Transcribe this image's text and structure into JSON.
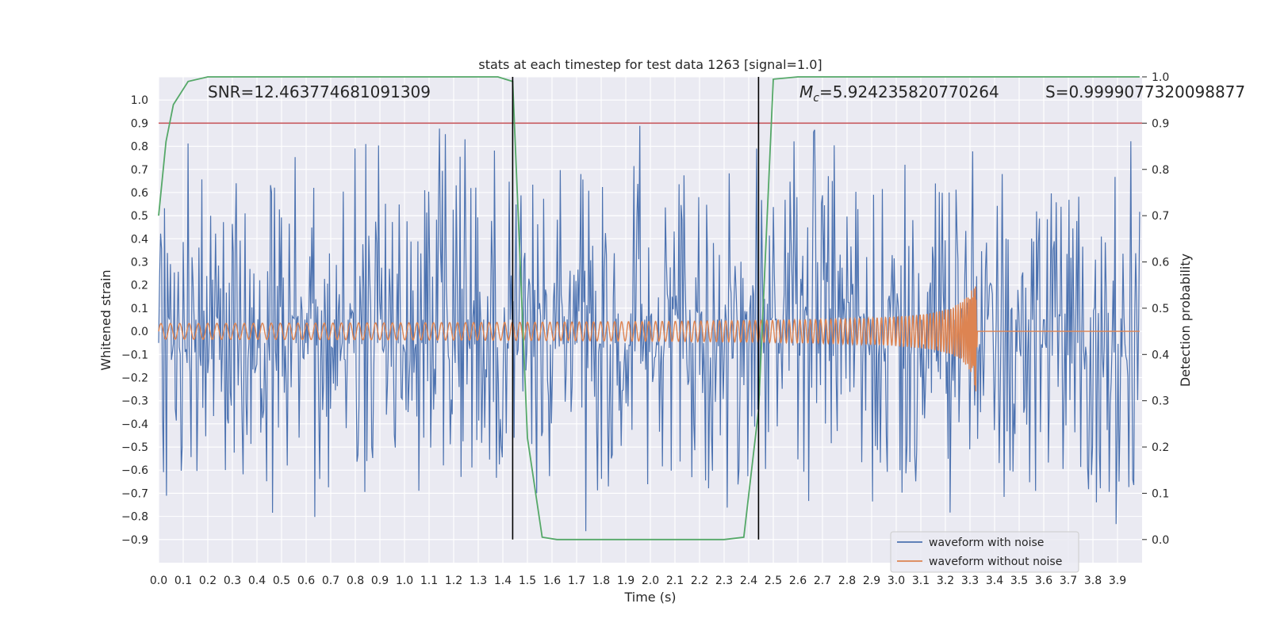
{
  "chart_data": {
    "type": "line",
    "title": "stats at each timestep for test data 1263 [signal=1.0]",
    "xlabel": "Time (s)",
    "ylabel": "Whitened strain",
    "ylabel_right": "Detection probability",
    "xlim": [
      0.0,
      4.0
    ],
    "ylim": [
      -1.0,
      1.1
    ],
    "ylim_right": [
      -0.05,
      1.0
    ],
    "grid": true,
    "x_ticks": [
      "0.0",
      "0.1",
      "0.2",
      "0.3",
      "0.4",
      "0.5",
      "0.6",
      "0.7",
      "0.8",
      "0.9",
      "1.0",
      "1.1",
      "1.2",
      "1.3",
      "1.4",
      "1.5",
      "1.6",
      "1.7",
      "1.8",
      "1.9",
      "2.0",
      "2.1",
      "2.2",
      "2.3",
      "2.4",
      "2.5",
      "2.6",
      "2.7",
      "2.8",
      "2.9",
      "3.0",
      "3.1",
      "3.2",
      "3.3",
      "3.4",
      "3.5",
      "3.6",
      "3.7",
      "3.8",
      "3.9"
    ],
    "y_ticks": [
      "1.0",
      "0.9",
      "0.8",
      "0.7",
      "0.6",
      "0.5",
      "0.4",
      "0.3",
      "0.2",
      "0.1",
      "0.0",
      "−0.1",
      "−0.2",
      "−0.3",
      "−0.4",
      "−0.5",
      "−0.6",
      "−0.7",
      "−0.8",
      "−0.9"
    ],
    "y_tick_values": [
      1.0,
      0.9,
      0.8,
      0.7,
      0.6,
      0.5,
      0.4,
      0.3,
      0.2,
      0.1,
      0.0,
      -0.1,
      -0.2,
      -0.3,
      -0.4,
      -0.5,
      -0.6,
      -0.7,
      -0.8,
      -0.9
    ],
    "y_right_ticks": [
      "1.0",
      "0.9",
      "0.8",
      "0.7",
      "0.6",
      "0.5",
      "0.4",
      "0.3",
      "0.2",
      "0.1",
      "0.0"
    ],
    "y_right_tick_values": [
      1.0,
      0.9,
      0.8,
      0.7,
      0.6,
      0.5,
      0.4,
      0.3,
      0.2,
      0.1,
      0.0
    ],
    "annotations": {
      "snr": "SNR=12.463774681091309",
      "mc_symbol": "M",
      "mc_sub": "c",
      "mc_value": "=5.924235820770264",
      "s": "S=0.9999077320098877"
    },
    "threshold": 0.9,
    "event_lines_x": [
      1.44,
      2.44
    ],
    "series": [
      {
        "name": "waveform with noise",
        "color": "#4c72b0",
        "kind": "noise",
        "y_peak_max": 1.0,
        "y_peak_min": -0.9
      },
      {
        "name": "waveform without noise",
        "color": "#dd8452",
        "kind": "chirp",
        "merger_time": 3.33,
        "peak_amplitude": 0.28
      },
      {
        "name": "detection probability",
        "color": "#55a868",
        "axis": "right",
        "x": [
          0.0,
          0.03,
          0.06,
          0.12,
          0.2,
          0.4,
          0.8,
          1.2,
          1.38,
          1.44,
          1.5,
          1.56,
          1.62,
          1.8,
          2.0,
          2.2,
          2.3,
          2.38,
          2.44,
          2.5,
          2.6,
          2.8,
          3.2,
          3.6,
          3.99
        ],
        "y": [
          0.7,
          0.86,
          0.94,
          0.99,
          1.0,
          1.0,
          1.0,
          1.0,
          1.0,
          0.99,
          0.22,
          0.005,
          0.0,
          0.0,
          0.0,
          0.0,
          0.0,
          0.005,
          0.28,
          0.995,
          1.0,
          1.0,
          1.0,
          1.0,
          1.0
        ]
      },
      {
        "name": "threshold",
        "color": "#c44e52",
        "axis": "right"
      }
    ],
    "legend": {
      "placement": "lower-right",
      "entries": [
        "waveform with noise",
        "waveform without noise"
      ]
    }
  }
}
